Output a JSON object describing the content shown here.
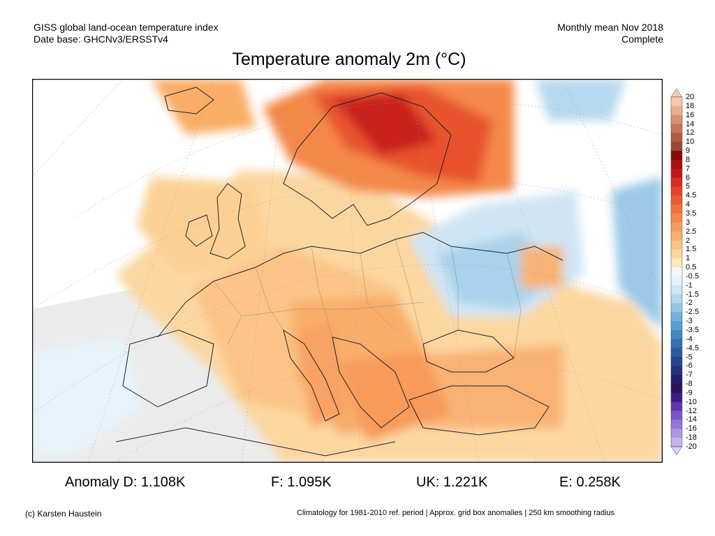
{
  "header": {
    "dataset_line": "GISS global land-ocean temperature index",
    "base_line": "Date base: GHCNv3/ERSSTv4",
    "period_line": "Monthly mean Nov 2018",
    "status_line": "Complete"
  },
  "title": "Temperature anomaly 2m (°C)",
  "map": {
    "region": "Europe",
    "projection_grid": "dotted lat/lon graticule",
    "features": [
      "warm anomaly Scandinavia / NW Russia",
      "cool anomaly western Russia",
      "warm anomaly Balkans / Turkey"
    ]
  },
  "colorbar": {
    "levels": [
      {
        "label": "20",
        "color": "#f6c8b0"
      },
      {
        "label": "18",
        "color": "#ebae90"
      },
      {
        "label": "16",
        "color": "#d99072"
      },
      {
        "label": "14",
        "color": "#c57456"
      },
      {
        "label": "12",
        "color": "#b05c40"
      },
      {
        "label": "10",
        "color": "#9a4a32"
      },
      {
        "label": "9",
        "color": "#8a0a0a"
      },
      {
        "label": "8",
        "color": "#a81010"
      },
      {
        "label": "7",
        "color": "#c4161a"
      },
      {
        "label": "6",
        "color": "#d92b23"
      },
      {
        "label": "5",
        "color": "#e7422c"
      },
      {
        "label": "4.5",
        "color": "#ee5a36"
      },
      {
        "label": "4",
        "color": "#f2713f"
      },
      {
        "label": "3.5",
        "color": "#f5884c"
      },
      {
        "label": "3",
        "color": "#f79c5c"
      },
      {
        "label": "2.5",
        "color": "#f9af6d"
      },
      {
        "label": "2",
        "color": "#fbc382"
      },
      {
        "label": "1.5",
        "color": "#fdd79b"
      },
      {
        "label": "1",
        "color": "#fde8b8"
      },
      {
        "label": "0.5",
        "color": "#f5f5f5"
      },
      {
        "label": "-0.5",
        "color": "#e6f3fb"
      },
      {
        "label": "-1",
        "color": "#cfe7f6"
      },
      {
        "label": "-1.5",
        "color": "#b3d8ef"
      },
      {
        "label": "-2",
        "color": "#93c6e6"
      },
      {
        "label": "-2.5",
        "color": "#74b1dc"
      },
      {
        "label": "-3",
        "color": "#5a9ccf"
      },
      {
        "label": "-3.5",
        "color": "#4686c1"
      },
      {
        "label": "-4",
        "color": "#3670b3"
      },
      {
        "label": "-4.5",
        "color": "#2a5aa3"
      },
      {
        "label": "-5",
        "color": "#244591"
      },
      {
        "label": "-6",
        "color": "#22327f"
      },
      {
        "label": "-7",
        "color": "#241f6d"
      },
      {
        "label": "-8",
        "color": "#2b145e"
      },
      {
        "label": "-9",
        "color": "#3c1b84"
      },
      {
        "label": "-10",
        "color": "#5d36ad"
      },
      {
        "label": "-12",
        "color": "#7a55c6"
      },
      {
        "label": "-14",
        "color": "#9475d8"
      },
      {
        "label": "-16",
        "color": "#ad95e6"
      },
      {
        "label": "-18",
        "color": "#c5b3ef"
      },
      {
        "label": "-20",
        "color": "#dcd0f6"
      }
    ]
  },
  "stats": {
    "anomaly_d": "Anomaly D: 1.108K",
    "anomaly_f": "F: 1.095K",
    "anomaly_uk": "UK: 1.221K",
    "anomaly_e": "E: 0.258K"
  },
  "footer": {
    "credit": "(c) Karsten Haustein",
    "note": "Climatology for 1981-2010 ref. period | Approx. grid box anomalies | 250 km smoothing radius"
  }
}
